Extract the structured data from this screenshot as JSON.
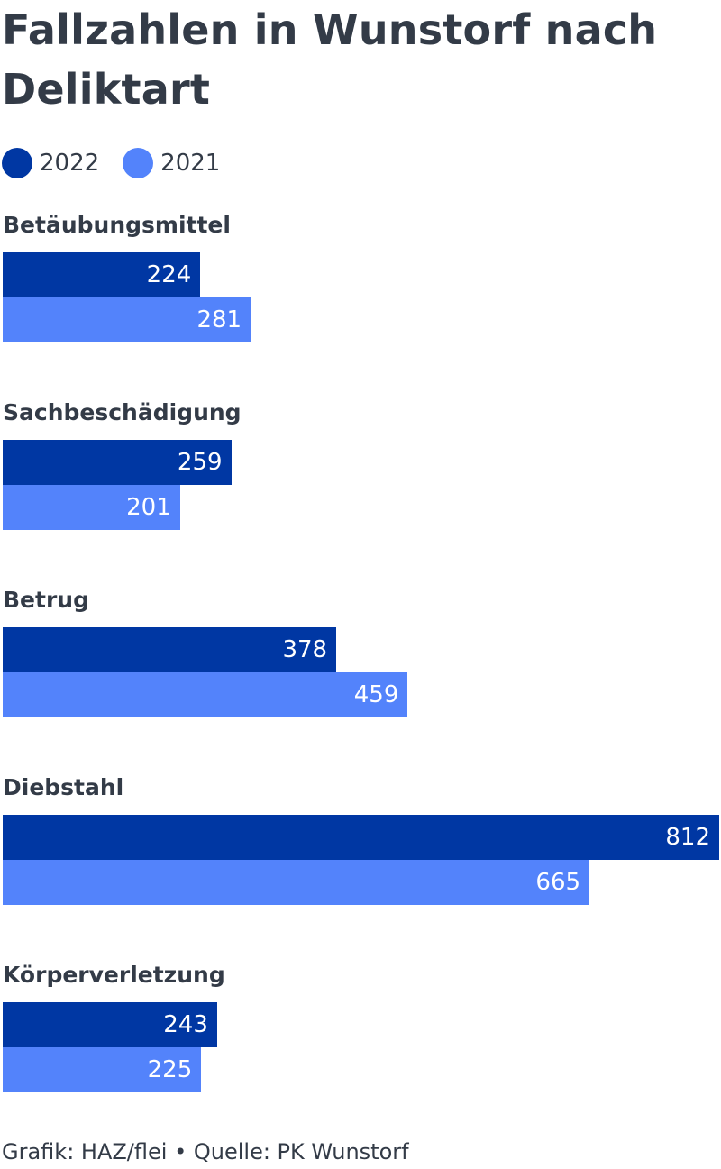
{
  "title": "Fallzahlen in Wunstorf nach Deliktart",
  "footer": "Grafik: HAZ/flei • Quelle: PK Wunstorf",
  "colors": {
    "series_2022": "#0037a3",
    "series_2021": "#5383fb",
    "text": "#333b47"
  },
  "chart_data": {
    "type": "bar",
    "orientation": "horizontal",
    "categories": [
      "Betäubungsmittel",
      "Sachbeschädigung",
      "Betrug",
      "Diebstahl",
      "Körperverletzung"
    ],
    "series": [
      {
        "name": "2022",
        "values": [
          224,
          259,
          378,
          812,
          243
        ]
      },
      {
        "name": "2021",
        "values": [
          281,
          201,
          459,
          665,
          225
        ]
      }
    ],
    "legend": "top-left",
    "grid": false,
    "data_labels": "inside-end"
  }
}
